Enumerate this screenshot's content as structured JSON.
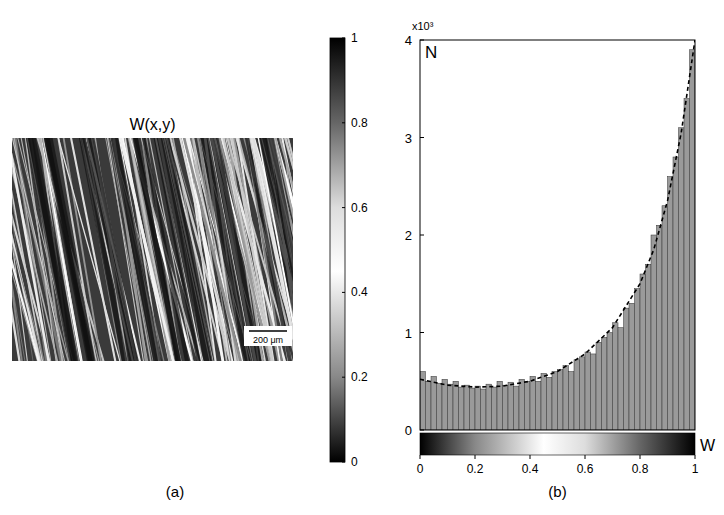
{
  "chart_data": [
    {
      "type": "image",
      "title": "W(x,y)",
      "panel": "(a)",
      "annotations": [
        "200 μm"
      ],
      "colorbar": {
        "range": [
          0,
          1
        ],
        "ticks": [
          0,
          0.2,
          0.4,
          0.6,
          0.8,
          1
        ]
      }
    },
    {
      "type": "histogram",
      "panel": "(b)",
      "x_label": "W",
      "y_label": "N",
      "annotations": [
        "x10³"
      ],
      "color": "#9a9a9a",
      "bins": [
        0,
        0.02,
        0.04,
        0.06,
        0.08,
        0.1,
        0.12,
        0.14,
        0.16,
        0.18,
        0.2,
        0.22,
        0.24,
        0.26,
        0.28,
        0.3,
        0.32,
        0.34,
        0.36,
        0.38,
        0.4,
        0.42,
        0.44,
        0.46,
        0.48,
        0.5,
        0.52,
        0.54,
        0.56,
        0.58,
        0.6,
        0.62,
        0.64,
        0.66,
        0.68,
        0.7,
        0.72,
        0.74,
        0.76,
        0.78,
        0.8,
        0.82,
        0.84,
        0.86,
        0.88,
        0.9,
        0.92,
        0.94,
        0.96,
        0.98,
        1
      ],
      "values": [
        0.6,
        0.5,
        0.55,
        0.48,
        0.52,
        0.47,
        0.5,
        0.44,
        0.46,
        0.43,
        0.45,
        0.42,
        0.47,
        0.44,
        0.5,
        0.46,
        0.49,
        0.45,
        0.52,
        0.5,
        0.55,
        0.5,
        0.58,
        0.54,
        0.6,
        0.62,
        0.66,
        0.6,
        0.72,
        0.75,
        0.8,
        0.78,
        0.9,
        0.95,
        1.0,
        1.1,
        1.05,
        1.25,
        1.3,
        1.45,
        1.6,
        1.7,
        2.0,
        2.1,
        2.3,
        2.6,
        2.8,
        3.1,
        3.4,
        3.9
      ],
      "series": [
        {
          "type": "line",
          "line_style": "dashed",
          "color": "#000000",
          "x": [
            0,
            0.1,
            0.2,
            0.3,
            0.4,
            0.5,
            0.6,
            0.7,
            0.8,
            0.85,
            0.9,
            0.95,
            1
          ],
          "values": [
            0.52,
            0.46,
            0.44,
            0.45,
            0.5,
            0.6,
            0.78,
            1.05,
            1.5,
            1.85,
            2.35,
            3.05,
            4.0
          ]
        }
      ],
      "xlim": [
        0,
        1
      ],
      "ylim": [
        0,
        4
      ],
      "xticks": [
        0,
        0.2,
        0.4,
        0.6,
        0.8,
        1
      ],
      "yticks": [
        0,
        1,
        2,
        3,
        4
      ]
    }
  ]
}
